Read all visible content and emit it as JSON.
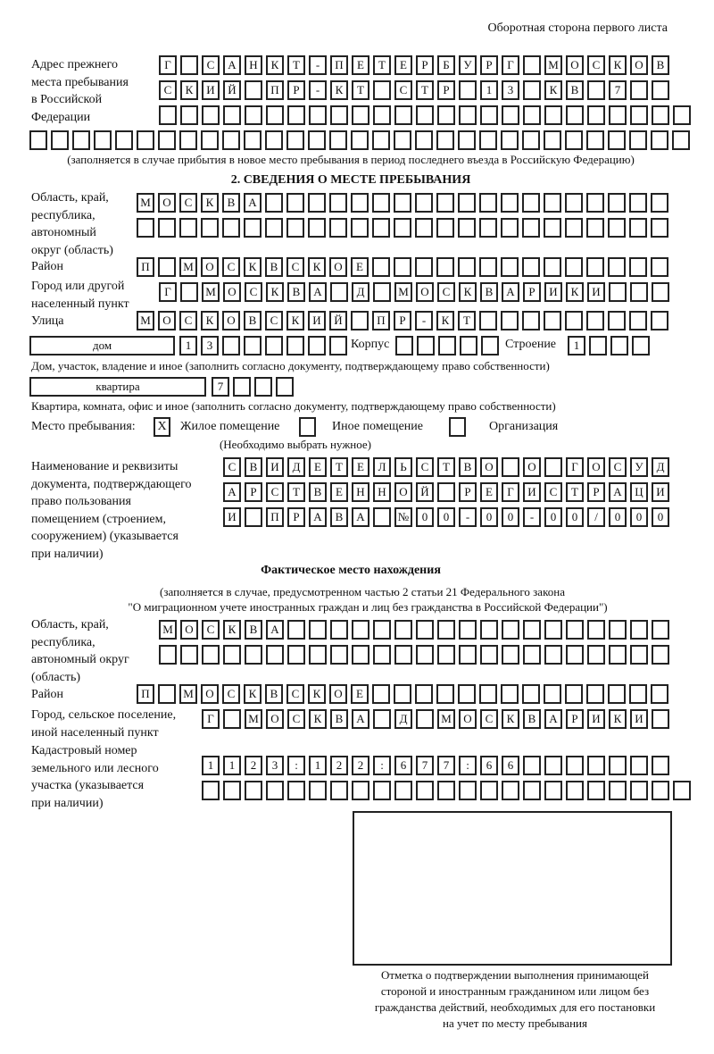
{
  "header": "Оборотная сторона первого листа",
  "prev_address": {
    "label": [
      "Адрес прежнего",
      "места пребывания",
      "в Российской",
      "Федерации"
    ],
    "rows": [
      [
        "Г",
        " ",
        "С",
        "А",
        "Н",
        "К",
        "Т",
        "-",
        "П",
        "Е",
        "Т",
        "Е",
        "Р",
        "Б",
        "У",
        "Р",
        "Г",
        " ",
        "М",
        "О",
        "С",
        "К",
        "О",
        "В"
      ],
      [
        "С",
        "К",
        "И",
        "Й",
        " ",
        "П",
        "Р",
        "-",
        "К",
        "Т",
        " ",
        "С",
        "Т",
        "Р",
        " ",
        "1",
        "3",
        " ",
        "К",
        "В",
        " ",
        "7",
        " ",
        " "
      ],
      [
        " ",
        " ",
        " ",
        " ",
        " ",
        " ",
        " ",
        " ",
        " ",
        " ",
        " ",
        " ",
        " ",
        " ",
        " ",
        " ",
        " ",
        " ",
        " ",
        " ",
        " ",
        " ",
        " ",
        " ",
        " "
      ],
      [
        " ",
        " ",
        " ",
        " ",
        " ",
        " ",
        " ",
        " ",
        " ",
        " ",
        " ",
        " ",
        " ",
        " ",
        " ",
        " ",
        " ",
        " ",
        " ",
        " ",
        " ",
        " ",
        " ",
        " ",
        " ",
        " ",
        " ",
        " ",
        " ",
        " ",
        " "
      ]
    ],
    "note": "(заполняется в случае прибытия в новое место пребывания в период последнего въезда в Российскую Федерацию)"
  },
  "section2": {
    "title": "2. СВЕДЕНИЯ О МЕСТЕ ПРЕБЫВАНИЯ",
    "region_label": [
      "Область, край,",
      "республика,",
      "автономный",
      "округ (область)"
    ],
    "region_rows": [
      [
        "М",
        "О",
        "С",
        "К",
        "В",
        "А",
        " ",
        " ",
        " ",
        " ",
        " ",
        " ",
        " ",
        " ",
        " ",
        " ",
        " ",
        " ",
        " ",
        " ",
        " ",
        " ",
        " ",
        " ",
        " "
      ],
      [
        " ",
        " ",
        " ",
        " ",
        " ",
        " ",
        " ",
        " ",
        " ",
        " ",
        " ",
        " ",
        " ",
        " ",
        " ",
        " ",
        " ",
        " ",
        " ",
        " ",
        " ",
        " ",
        " ",
        " ",
        " "
      ]
    ],
    "district_label": "Район",
    "district": [
      "П",
      " ",
      "М",
      "О",
      "С",
      "К",
      "В",
      "С",
      "К",
      "О",
      "Е",
      " ",
      " ",
      " ",
      " ",
      " ",
      " ",
      " ",
      " ",
      " ",
      " ",
      " ",
      " ",
      " ",
      " "
    ],
    "city_label": [
      "Город или другой",
      "населенный пункт"
    ],
    "city": [
      "Г",
      " ",
      "М",
      "О",
      "С",
      "К",
      "В",
      "А",
      " ",
      "Д",
      " ",
      "М",
      "О",
      "С",
      "К",
      "В",
      "А",
      "Р",
      "И",
      "К",
      "И",
      " ",
      " ",
      " "
    ],
    "street_label": "Улица",
    "street": [
      "М",
      "О",
      "С",
      "К",
      "О",
      "В",
      "С",
      "К",
      "И",
      "Й",
      " ",
      "П",
      "Р",
      "-",
      "К",
      "Т",
      " ",
      " ",
      " ",
      " ",
      " ",
      " ",
      " ",
      " ",
      " "
    ],
    "house_type": "дом",
    "house": [
      "1",
      "3",
      " ",
      " ",
      " ",
      " ",
      " ",
      " "
    ],
    "building_label": "Корпус",
    "building": [
      " ",
      " ",
      " ",
      " ",
      " "
    ],
    "structure_label": "Строение",
    "structure": [
      "1",
      " ",
      " ",
      " "
    ],
    "house_note": "Дом, участок, владение и иное (заполнить согласно документу, подтверждающему право собственности)",
    "apt_type": "квартира",
    "apt": [
      "7",
      " ",
      " ",
      " "
    ],
    "apt_note": "Квартира, комната, офис и иное (заполнить согласно документу, подтверждающему право собственности)",
    "stay_label": "Место пребывания:",
    "stay_options": [
      {
        "label": "Жилое помещение",
        "mark": "X"
      },
      {
        "label": "Иное помещение",
        "mark": ""
      },
      {
        "label": "Организация",
        "mark": ""
      }
    ],
    "stay_note": "(Необходимо выбрать нужное)",
    "doc_label": [
      "Наименование и реквизиты",
      "документа, подтверждающего",
      "право пользования",
      "помещением (строением,",
      "сооружением) (указывается",
      "при наличии)"
    ],
    "doc_rows": [
      [
        "С",
        "В",
        "И",
        "Д",
        "Е",
        "Т",
        "Е",
        "Л",
        "Ь",
        "С",
        "Т",
        "В",
        "О",
        " ",
        "О",
        " ",
        "Г",
        "О",
        "С",
        "У",
        "Д"
      ],
      [
        "А",
        "Р",
        "С",
        "Т",
        "В",
        "Е",
        "Н",
        "Н",
        "О",
        "Й",
        " ",
        "Р",
        "Е",
        "Г",
        "И",
        "С",
        "Т",
        "Р",
        "А",
        "Ц",
        "И"
      ],
      [
        "И",
        " ",
        "П",
        "Р",
        "А",
        "В",
        "А",
        " ",
        "№",
        "0",
        "0",
        "-",
        "0",
        "0",
        "-",
        "0",
        "0",
        "/",
        "0",
        "0",
        "0"
      ]
    ]
  },
  "actual": {
    "title": "Фактическое место нахождения",
    "note": [
      "(заполняется в случае, предусмотренном частью 2 статьи 21 Федерального закона",
      "\"О миграционном учете иностранных граждан и лиц без гражданства в Российской Федерации\")"
    ],
    "region_label": [
      "Область, край,",
      "республика,",
      "автономный округ",
      "(область)"
    ],
    "region_rows": [
      [
        "М",
        "О",
        "С",
        "К",
        "В",
        "А",
        " ",
        " ",
        " ",
        " ",
        " ",
        " ",
        " ",
        " ",
        " ",
        " ",
        " ",
        " ",
        " ",
        " ",
        " ",
        " ",
        " ",
        " "
      ],
      [
        " ",
        " ",
        " ",
        " ",
        " ",
        " ",
        " ",
        " ",
        " ",
        " ",
        " ",
        " ",
        " ",
        " ",
        " ",
        " ",
        " ",
        " ",
        " ",
        " ",
        " ",
        " ",
        " ",
        " "
      ]
    ],
    "district_label": "Район",
    "district": [
      "П",
      " ",
      "М",
      "О",
      "С",
      "К",
      "В",
      "С",
      "К",
      "О",
      "Е",
      " ",
      " ",
      " ",
      " ",
      " ",
      " ",
      " ",
      " ",
      " ",
      " ",
      " ",
      " ",
      " ",
      " "
    ],
    "city_label": [
      "Город, сельское поселение,",
      "иной населенный пункт"
    ],
    "city": [
      "Г",
      " ",
      "М",
      "О",
      "С",
      "К",
      "В",
      "А",
      " ",
      "Д",
      " ",
      "М",
      "О",
      "С",
      "К",
      "В",
      "А",
      "Р",
      "И",
      "К",
      "И",
      " "
    ],
    "cadastral_label": [
      "Кадастровый номер",
      "земельного или лесного",
      "участка (указывается",
      "при наличии)"
    ],
    "cadastral_rows": [
      [
        "1",
        "1",
        "2",
        "3",
        ":",
        "1",
        "2",
        "2",
        ":",
        "6",
        "7",
        "7",
        ":",
        "6",
        "6",
        " ",
        " ",
        " ",
        " ",
        " ",
        " ",
        " "
      ],
      [
        " ",
        " ",
        " ",
        " ",
        " ",
        " ",
        " ",
        " ",
        " ",
        " ",
        " ",
        " ",
        " ",
        " ",
        " ",
        " ",
        " ",
        " ",
        " ",
        " ",
        " ",
        " ",
        " "
      ]
    ]
  },
  "confirmation": {
    "caption": [
      "Отметка о подтверждении выполнения принимающей",
      "стороной и иностранным гражданином или лицом без",
      "гражданства действий, необходимых для его постановки",
      "на учет по месту пребывания"
    ]
  }
}
